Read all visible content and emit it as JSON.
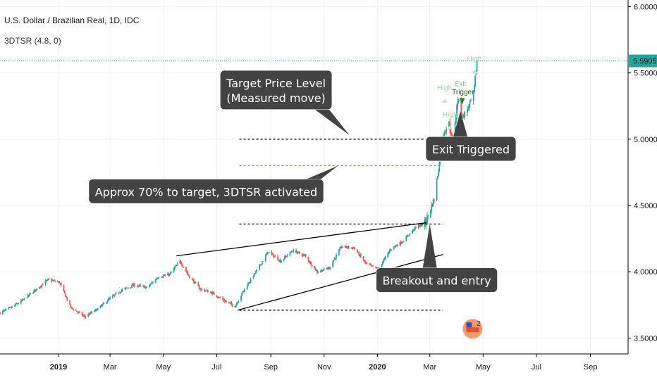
{
  "header": {
    "title": "U.S. Dollar / Brazilian Real, 1D, IDC",
    "indicator": "3DTSR (4.8, 0)"
  },
  "colors": {
    "up": "#26a69a",
    "down": "#ef5350",
    "price_line": "#26a69a",
    "callout_bg": "#434343",
    "grid": "#eef0f3",
    "green_dashed": "#4caf50"
  },
  "chart_data": {
    "type": "candlestick",
    "symbol": "USDBRL",
    "ylim": [
      3.38,
      6.05
    ],
    "y_ticks": [
      {
        "value": 3.5,
        "label": "3.5000"
      },
      {
        "value": 4.0,
        "label": "4.0000"
      },
      {
        "value": 4.5,
        "label": "4.5000"
      },
      {
        "value": 5.0,
        "label": "5.0000"
      },
      {
        "value": 5.5,
        "label": "5.5000"
      },
      {
        "value": 6.0,
        "label": "6.0000"
      }
    ],
    "x_start": "2018-10-26",
    "x_end": "2020-10-14",
    "x_ticks": [
      {
        "date": "2019-01-01",
        "label": "2019",
        "bold": true
      },
      {
        "date": "2019-03-01",
        "label": "Mar"
      },
      {
        "date": "2019-05-01",
        "label": "May"
      },
      {
        "date": "2019-07-01",
        "label": "Jul"
      },
      {
        "date": "2019-09-01",
        "label": "Sep"
      },
      {
        "date": "2019-11-01",
        "label": "Nov"
      },
      {
        "date": "2020-01-01",
        "label": "2020",
        "bold": true
      },
      {
        "date": "2020-03-01",
        "label": "Mar"
      },
      {
        "date": "2020-05-01",
        "label": "May"
      },
      {
        "date": "2020-07-01",
        "label": "Jul"
      },
      {
        "date": "2020-09-01",
        "label": "Sep"
      }
    ],
    "last_price": 5.5905,
    "last_price_label": "5.5905",
    "path": [
      [
        "2018-10-26",
        3.69
      ],
      [
        "2018-11-08",
        3.73
      ],
      [
        "2018-11-22",
        3.79
      ],
      [
        "2018-12-05",
        3.86
      ],
      [
        "2018-12-20",
        3.94
      ],
      [
        "2019-01-02",
        3.92
      ],
      [
        "2019-01-15",
        3.73
      ],
      [
        "2019-01-31",
        3.66
      ],
      [
        "2019-02-15",
        3.72
      ],
      [
        "2019-03-01",
        3.8
      ],
      [
        "2019-03-14",
        3.86
      ],
      [
        "2019-03-28",
        3.9
      ],
      [
        "2019-04-12",
        3.88
      ],
      [
        "2019-04-25",
        3.96
      ],
      [
        "2019-05-08",
        3.98
      ],
      [
        "2019-05-20",
        4.08
      ],
      [
        "2019-05-30",
        3.97
      ],
      [
        "2019-06-12",
        3.87
      ],
      [
        "2019-06-26",
        3.84
      ],
      [
        "2019-07-10",
        3.78
      ],
      [
        "2019-07-22",
        3.74
      ],
      [
        "2019-08-02",
        3.87
      ],
      [
        "2019-08-15",
        4.0
      ],
      [
        "2019-08-29",
        4.15
      ],
      [
        "2019-09-12",
        4.08
      ],
      [
        "2019-09-26",
        4.16
      ],
      [
        "2019-10-10",
        4.12
      ],
      [
        "2019-10-24",
        4.0
      ],
      [
        "2019-11-07",
        4.03
      ],
      [
        "2019-11-21",
        4.19
      ],
      [
        "2019-12-05",
        4.18
      ],
      [
        "2019-12-19",
        4.06
      ],
      [
        "2020-01-02",
        4.02
      ],
      [
        "2020-01-16",
        4.17
      ],
      [
        "2020-01-30",
        4.23
      ],
      [
        "2020-02-13",
        4.33
      ],
      [
        "2020-02-25",
        4.37
      ],
      [
        "2020-03-06",
        4.55
      ],
      [
        "2020-03-11",
        4.78
      ],
      [
        "2020-03-17",
        5.05
      ],
      [
        "2020-03-23",
        5.12
      ],
      [
        "2020-03-27",
        4.97
      ],
      [
        "2020-04-02",
        5.3
      ],
      [
        "2020-04-08",
        5.17
      ],
      [
        "2020-04-14",
        5.24
      ],
      [
        "2020-04-20",
        5.33
      ],
      [
        "2020-04-24",
        5.59
      ]
    ],
    "lines": [
      {
        "kind": "trendline",
        "from": [
          "2019-05-16",
          4.12
        ],
        "to": [
          "2020-02-26",
          4.37
        ]
      },
      {
        "kind": "trendline",
        "from": [
          "2019-07-25",
          3.71
        ],
        "to": [
          "2020-03-16",
          4.13
        ]
      },
      {
        "kind": "dotted",
        "level": 5.0,
        "from": "2019-07-27",
        "to": "2020-03-16"
      },
      {
        "kind": "dashed-green",
        "level": 4.8,
        "from": "2019-07-27",
        "to": "2020-03-16"
      },
      {
        "kind": "dotted",
        "level": 4.36,
        "from": "2019-07-27",
        "to": "2020-03-16"
      },
      {
        "kind": "dotted",
        "level": 3.71,
        "from": "2019-07-27",
        "to": "2020-03-16"
      }
    ],
    "annotations": [
      {
        "lines": [
          "Target Price Level",
          "(Measured move)"
        ],
        "box_date": "2019-09-07",
        "box_value": 5.52,
        "tip": [
          "2019-11-30",
          5.03
        ]
      },
      {
        "lines": [
          "Approx 70% to target, 3DTSR activated"
        ],
        "box_date": "2019-06-19",
        "box_value": 4.7,
        "tip": [
          "2019-11-17",
          4.8
        ]
      },
      {
        "lines": [
          "Breakout and entry"
        ],
        "box_date": "2020-03-09",
        "box_value": 4.03,
        "tip": [
          "2020-03-01",
          4.36
        ]
      },
      {
        "lines": [
          "Exit Triggered"
        ],
        "box_date": "2020-04-17",
        "box_value": 5.02,
        "tip": [
          "2020-04-05",
          5.21
        ]
      }
    ],
    "markers": [
      {
        "text": "High",
        "date": "2020-03-18",
        "value": 5.37,
        "color": "#a5d6a7"
      },
      {
        "text": "High",
        "date": "2020-03-24",
        "value": 5.17,
        "color": "#a5d6a7"
      },
      {
        "text": "High",
        "date": "2020-04-21",
        "value": 5.59,
        "color": "#a5d6a7"
      },
      {
        "text": "Exit",
        "date": "2020-04-05",
        "value": 5.4,
        "color": "#81c784"
      },
      {
        "text": "Trigger",
        "date": "2020-04-08",
        "value": 5.34,
        "color": "#1b5e20"
      }
    ]
  }
}
